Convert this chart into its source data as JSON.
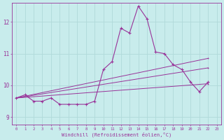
{
  "xlabel": "Windchill (Refroidissement éolien,°C)",
  "bg_color": "#c8ecec",
  "grid_color": "#b0dada",
  "line_color": "#993399",
  "x_min": -0.5,
  "x_max": 23.5,
  "y_min": 8.75,
  "y_max": 12.6,
  "yticks": [
    9,
    10,
    11,
    12
  ],
  "xticks": [
    0,
    1,
    2,
    3,
    4,
    5,
    6,
    7,
    8,
    9,
    10,
    11,
    12,
    13,
    14,
    15,
    16,
    17,
    18,
    19,
    20,
    21,
    22,
    23
  ],
  "series_main": [
    9.6,
    9.7,
    9.5,
    9.5,
    9.6,
    9.4,
    9.4,
    9.4,
    9.4,
    9.5,
    10.5,
    10.75,
    11.8,
    11.65,
    12.5,
    12.1,
    11.05,
    11.0,
    10.65,
    10.5,
    10.1,
    9.8,
    10.1
  ],
  "line1": [
    [
      0,
      9.6
    ],
    [
      22,
      10.05
    ]
  ],
  "line2": [
    [
      0,
      9.6
    ],
    [
      22,
      10.55
    ]
  ],
  "line3": [
    [
      0,
      9.6
    ],
    [
      22,
      10.85
    ]
  ]
}
